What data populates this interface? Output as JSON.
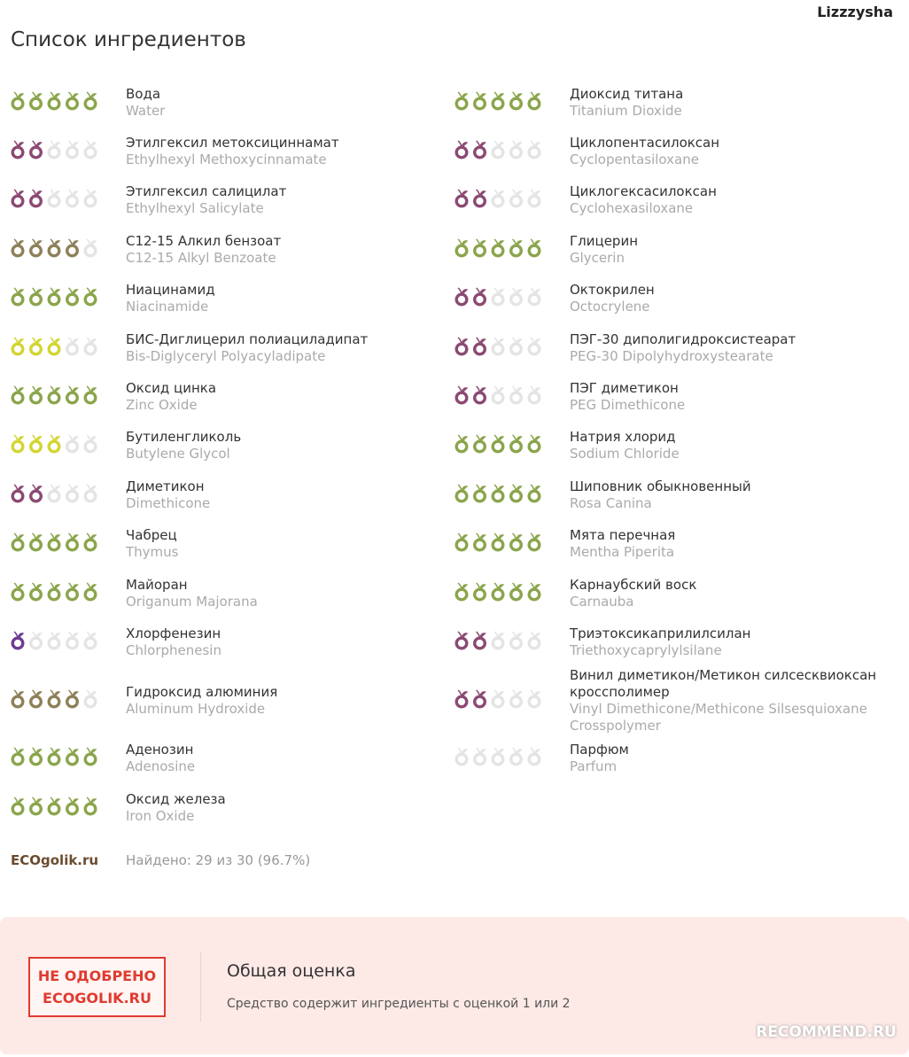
{
  "user": "Lizzzysha",
  "title": "Список ингредиентов",
  "rating_colors": [
    "#e4e4e4",
    "#6e3a93",
    "#8b4a72",
    "#d3d533",
    "#8d8159",
    "#8ba54c"
  ],
  "empty_color": "#e4e4e4",
  "left": [
    {
      "name": "Вода",
      "latin": "Water",
      "rating": 5
    },
    {
      "name": "Этилгексил метоксициннамат",
      "latin": "Ethylhexyl Methoxycinnamate",
      "rating": 2
    },
    {
      "name": "Этилгексил салицилат",
      "latin": "Ethylhexyl Salicylate",
      "rating": 2
    },
    {
      "name": "С12-15 Алкил бензоат",
      "latin": "C12-15 Alkyl Benzoate",
      "rating": 4
    },
    {
      "name": "Ниацинамид",
      "latin": "Niacinamide",
      "rating": 5
    },
    {
      "name": "БИС-Диглицерил полиациладипат",
      "latin": "Bis-Diglyceryl Polyacyladipate",
      "rating": 3
    },
    {
      "name": "Оксид цинка",
      "latin": "Zinc Oxide",
      "rating": 5
    },
    {
      "name": "Бутиленгликоль",
      "latin": "Butylene Glycol",
      "rating": 3
    },
    {
      "name": "Диметикон",
      "latin": "Dimethicone",
      "rating": 2
    },
    {
      "name": "Чабрец",
      "latin": "Thymus",
      "rating": 5
    },
    {
      "name": "Майоран",
      "latin": "Origanum Majorana",
      "rating": 5
    },
    {
      "name": "Хлорфенезин",
      "latin": "Chlorphenesin",
      "rating": 1
    },
    {
      "name": "Гидроксид алюминия",
      "latin": "Aluminum Hydroxide",
      "rating": 4
    },
    {
      "name": "Аденозин",
      "latin": "Adenosine",
      "rating": 5
    },
    {
      "name": "Оксид железа",
      "latin": "Iron Oxide",
      "rating": 5
    }
  ],
  "right": [
    {
      "name": "Диоксид титана",
      "latin": "Titanium Dioxide",
      "rating": 5
    },
    {
      "name": "Циклопентасилоксан",
      "latin": "Cyclopentasiloxane",
      "rating": 2
    },
    {
      "name": "Циклогексасилоксан",
      "latin": "Cyclohexasiloxane",
      "rating": 2
    },
    {
      "name": "Глицерин",
      "latin": "Glycerin",
      "rating": 5
    },
    {
      "name": "Октокрилен",
      "latin": "Octocrylene",
      "rating": 2
    },
    {
      "name": "ПЭГ-30 диполигидроксистеарат",
      "latin": "PEG-30 Dipolyhydroxystearate",
      "rating": 2
    },
    {
      "name": "ПЭГ диметикон",
      "latin": "PEG Dimethicone",
      "rating": 2
    },
    {
      "name": "Натрия хлорид",
      "latin": "Sodium Chloride",
      "rating": 5
    },
    {
      "name": "Шиповник обыкновенный",
      "latin": "Rosa Canina",
      "rating": 5
    },
    {
      "name": "Мята перечная",
      "latin": "Mentha Piperita",
      "rating": 5
    },
    {
      "name": "Карнаубский воск",
      "latin": "Carnauba",
      "rating": 5
    },
    {
      "name": "Триэтоксикаприлилсилан",
      "latin": "Triethoxycaprylylsilane",
      "rating": 2
    },
    {
      "name": "Винил диметикон/Метикон силсесквиоксан кроссполимер",
      "latin": "Vinyl Dimethicone/Methicone Silsesquioxane Crosspolymer",
      "rating": 2
    },
    {
      "name": "Парфюм",
      "latin": "Parfum",
      "rating": 0
    }
  ],
  "logo": "ECOgolik.ru",
  "found": "Найдено: 29 из 30 (96.7%)",
  "stamp": [
    "НЕ ОДОБРЕНО",
    "ECOGOLIK.RU"
  ],
  "verdict_title": "Общая оценка",
  "verdict_text": "Средство содержит ингредиенты с оценкой 1 или 2",
  "watermark": "RECOMMEND.RU"
}
